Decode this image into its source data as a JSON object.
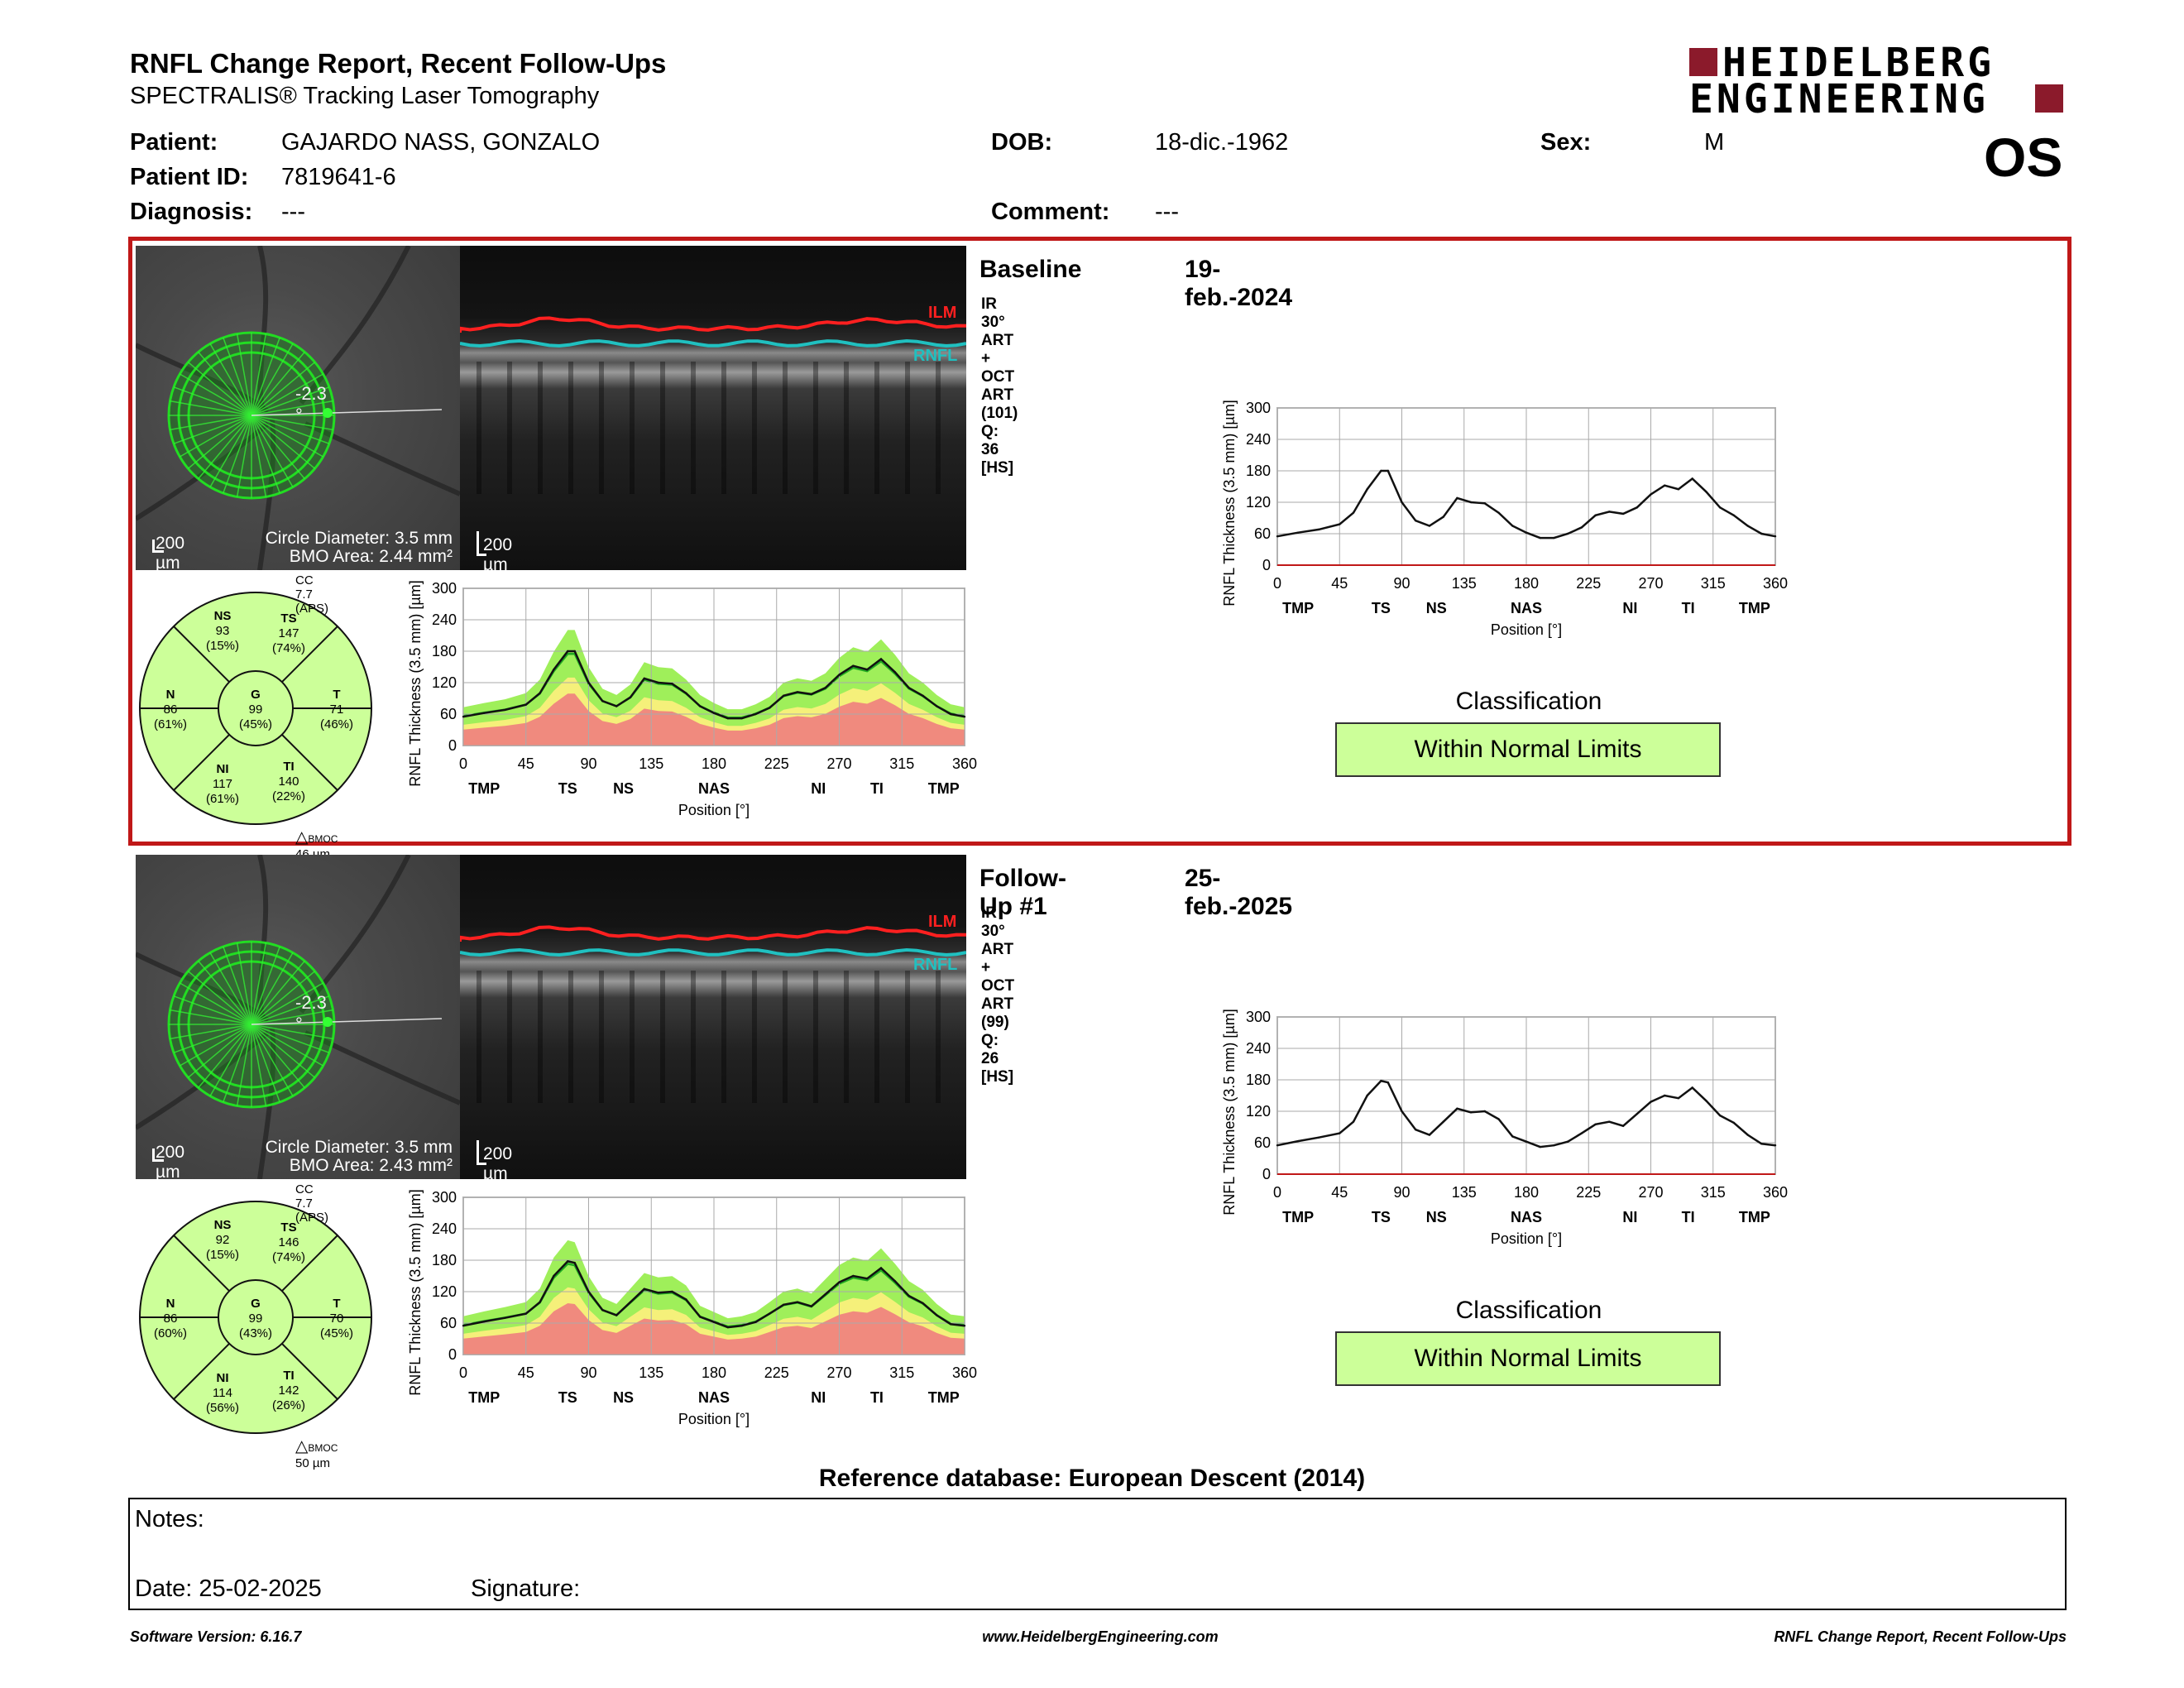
{
  "header": {
    "title": "RNFL Change Report, Recent Follow-Ups",
    "subtitle": "SPECTRALIS® Tracking Laser Tomography",
    "logo_line1": "HEIDELBERG",
    "logo_line2": "ENGINEERING",
    "eye": "OS",
    "brand_color": "#8b1a2b"
  },
  "patient": {
    "patient_label": "Patient:",
    "patient_value": "GAJARDO NASS, GONZALO",
    "id_label": "Patient ID:",
    "id_value": "7819641-6",
    "diagnosis_label": "Diagnosis:",
    "diagnosis_value": "---",
    "dob_label": "DOB:",
    "dob_value": "18-dic.-1962",
    "comment_label": "Comment:",
    "comment_value": "---",
    "sex_label": "Sex:",
    "sex_value": "M"
  },
  "exams": [
    {
      "name": "Baseline",
      "date": "19-feb.-2024",
      "scan_info": "IR 30° ART + OCT ART (101) Q: 36 [HS]",
      "angle": "-2.3 °",
      "scale_fundus": "200 µm",
      "scale_oct": "200 µm",
      "circle_diameter": "Circle Diameter: 3.5 mm",
      "bmo_area": "BMO Area: 2.44 mm²",
      "cc": "CC 7.7 (APS)",
      "bmoc_prefix": "BMOC",
      "bmoc_value": "46 µm",
      "ilm": "ILM",
      "rnfl": "RNFL",
      "sectors": {
        "NS": {
          "label": "NS",
          "value": "93",
          "pct": "(15%)"
        },
        "TS": {
          "label": "TS",
          "value": "147",
          "pct": "(74%)"
        },
        "N": {
          "label": "N",
          "value": "86",
          "pct": "(61%)"
        },
        "G": {
          "label": "G",
          "value": "99",
          "pct": "(45%)"
        },
        "T": {
          "label": "T",
          "value": "71",
          "pct": "(46%)"
        },
        "NI": {
          "label": "NI",
          "value": "117",
          "pct": "(61%)"
        },
        "TI": {
          "label": "TI",
          "value": "140",
          "pct": "(22%)"
        }
      },
      "classification_label": "Classification",
      "classification_value": "Within Normal Limits"
    },
    {
      "name": "Follow-Up #1",
      "date": "25-feb.-2025",
      "scan_info": "IR 30° ART + OCT ART (99) Q: 26 [HS]",
      "angle": "-2.3 °",
      "scale_fundus": "200 µm",
      "scale_oct": "200 µm",
      "circle_diameter": "Circle Diameter: 3.5 mm",
      "bmo_area": "BMO Area: 2.43 mm²",
      "cc": "CC 7.7 (APS)",
      "bmoc_prefix": "BMOC",
      "bmoc_value": "50 µm",
      "ilm": "ILM",
      "rnfl": "RNFL",
      "sectors": {
        "NS": {
          "label": "NS",
          "value": "92",
          "pct": "(15%)"
        },
        "TS": {
          "label": "TS",
          "value": "146",
          "pct": "(74%)"
        },
        "N": {
          "label": "N",
          "value": "86",
          "pct": "(60%)"
        },
        "G": {
          "label": "G",
          "value": "99",
          "pct": "(43%)"
        },
        "T": {
          "label": "T",
          "value": "70",
          "pct": "(45%)"
        },
        "NI": {
          "label": "NI",
          "value": "114",
          "pct": "(56%)"
        },
        "TI": {
          "label": "TI",
          "value": "142",
          "pct": "(26%)"
        }
      },
      "classification_label": "Classification",
      "classification_value": "Within Normal Limits"
    }
  ],
  "chart_common": {
    "ylabel": "RNFL Thickness (3.5 mm) [µm]",
    "xlabel": "Position [°]",
    "y_ticks": [
      "300",
      "240",
      "180",
      "120",
      "60",
      "0"
    ],
    "x_ticks": [
      "0",
      "45",
      "90",
      "135",
      "180",
      "225",
      "270",
      "315",
      "360"
    ],
    "regions": [
      "TMP",
      "TS",
      "NS",
      "NAS",
      "NI",
      "TI",
      "TMP"
    ]
  },
  "chart_data": [
    {
      "type": "line",
      "ylabel": "RNFL Thickness (3.5 mm) [µm]",
      "xlabel": "Position [°]",
      "xlim": [
        0,
        360
      ],
      "ylim": [
        0,
        300
      ],
      "x": [
        0,
        15,
        30,
        45,
        55,
        65,
        75,
        80,
        90,
        100,
        110,
        120,
        130,
        140,
        150,
        160,
        170,
        180,
        190,
        200,
        210,
        220,
        230,
        240,
        250,
        260,
        270,
        280,
        290,
        300,
        310,
        320,
        330,
        340,
        350,
        360
      ],
      "series": [
        {
          "values": [
            55,
            62,
            68,
            78,
            100,
            145,
            180,
            180,
            120,
            85,
            75,
            92,
            128,
            120,
            118,
            100,
            75,
            62,
            52,
            52,
            60,
            72,
            95,
            102,
            98,
            110,
            135,
            152,
            145,
            165,
            140,
            110,
            95,
            75,
            60,
            55
          ]
        }
      ]
    },
    {
      "type": "line",
      "ylabel": "RNFL Thickness (3.5 mm) [µm]",
      "xlabel": "Position [°]",
      "xlim": [
        0,
        360
      ],
      "ylim": [
        0,
        300
      ],
      "x": [
        0,
        15,
        30,
        45,
        55,
        65,
        75,
        80,
        90,
        100,
        110,
        120,
        130,
        140,
        150,
        160,
        170,
        180,
        190,
        200,
        210,
        220,
        230,
        240,
        250,
        260,
        270,
        280,
        290,
        300,
        310,
        320,
        330,
        340,
        350,
        360
      ],
      "series": [
        {
          "values": [
            55,
            63,
            70,
            78,
            100,
            150,
            178,
            175,
            120,
            85,
            75,
            100,
            125,
            118,
            120,
            105,
            72,
            62,
            52,
            55,
            62,
            78,
            95,
            100,
            92,
            115,
            138,
            150,
            145,
            165,
            140,
            112,
            98,
            75,
            58,
            55
          ]
        }
      ]
    }
  ],
  "sector_colors": {
    "normal": "#ccff99",
    "line": "#111111"
  },
  "profile_colors": {
    "red": "#f08a7e",
    "yellow": "#f5f07a",
    "green": "#9fef5a",
    "line": "#111111",
    "mean": "#22aa22"
  },
  "reference_db": "Reference database: European Descent (2014)",
  "notes": {
    "label": "Notes:",
    "date": "Date: 25-02-2025",
    "signature": "Signature:"
  },
  "footer": {
    "left": "Software Version: 6.16.7",
    "center": "www.HeidelbergEngineering.com",
    "right": "RNFL Change Report, Recent Follow-Ups"
  }
}
